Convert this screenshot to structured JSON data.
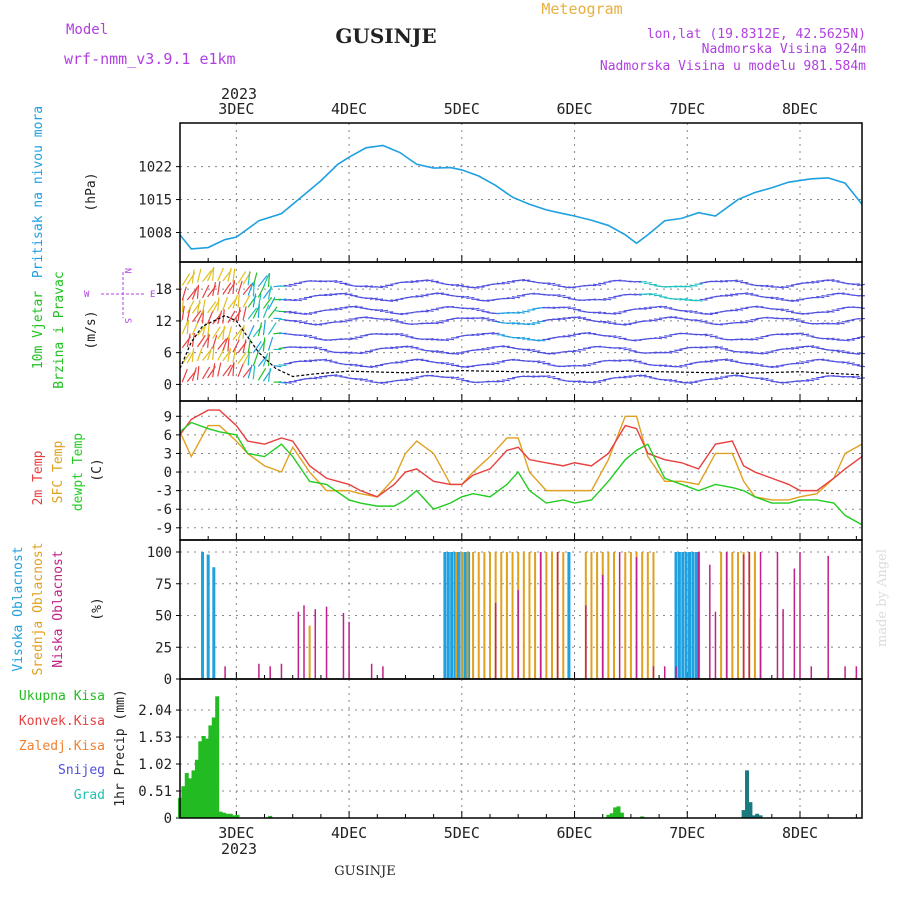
{
  "header": {
    "meteogram": "Meteogram",
    "model_label": "Model",
    "model_name": "wrf-nmm_v3.9.1 e1km",
    "station": "GUSINJE",
    "coords": "lon,lat (19.8312E, 42.5625N)",
    "altitude": "Nadmorska Visina 924m",
    "model_altitude": "Nadmorska Visina u modelu 981.584m",
    "footer_station": "GUSINJE",
    "credit": "made by Angel"
  },
  "colors": {
    "pressure": "#1fa0e0",
    "wind_label": "#22c022",
    "wind_dir": "#b040e0",
    "temp2m": "#e84040",
    "sfc": "#e0a020",
    "dew": "#22cc22",
    "high": "#1fa0e0",
    "mid": "#e0a020",
    "low": "#c0208a",
    "rain": "#22bb22",
    "conv": "#e84040",
    "frz": "#f08030",
    "snow": "#5050e0",
    "grad": "#20c0b0",
    "snowbar": "#1a7a80"
  },
  "time_axis": {
    "top_year": "2023",
    "bottom_year": "2023",
    "days": [
      "3DEC",
      "4DEC",
      "5DEC",
      "6DEC",
      "7DEC",
      "8DEC"
    ]
  },
  "chart_data": [
    {
      "type": "line",
      "id": "pressure",
      "ylabel": "Pritisak na nivou mora",
      "unit": "(hPa)",
      "yticks": [
        "1008",
        "1015",
        "1022"
      ],
      "ylim": [
        1003,
        1030
      ],
      "x": [
        2.5,
        2.6,
        2.75,
        2.9,
        3.0,
        3.2,
        3.4,
        3.6,
        3.75,
        3.9,
        4.0,
        4.15,
        4.3,
        4.45,
        4.6,
        4.75,
        4.9,
        5.0,
        5.15,
        5.3,
        5.45,
        5.6,
        5.75,
        5.9,
        6.0,
        6.15,
        6.3,
        6.45,
        6.55,
        6.65,
        6.8,
        6.95,
        7.1,
        7.25,
        7.45,
        7.6,
        7.75,
        7.9,
        8.1,
        8.25,
        8.4,
        8.55
      ],
      "y": [
        1007.5,
        1004.5,
        1004.8,
        1006.5,
        1007,
        1010.5,
        1012,
        1016,
        1019,
        1022.5,
        1024,
        1026,
        1026.5,
        1025,
        1022.5,
        1021.7,
        1021.8,
        1021.3,
        1020,
        1018,
        1015.5,
        1014,
        1012.8,
        1012,
        1011.5,
        1010.6,
        1009.5,
        1007.5,
        1005.7,
        1007.5,
        1010.5,
        1011,
        1012.2,
        1011.5,
        1015,
        1016.5,
        1017.5,
        1018.7,
        1019.4,
        1019.6,
        1018.5,
        1014
      ]
    },
    {
      "type": "line",
      "id": "wind",
      "ylabel": "10m Vjetar",
      "ylabel2": "Brzina i Pravac",
      "unit": "(m/s)",
      "compass": {
        "n": "N",
        "w": "W",
        "e": "E",
        "s": "S"
      },
      "yticks": [
        "0",
        "6",
        "12",
        "18"
      ],
      "ylim": [
        -2,
        22
      ],
      "series": [
        {
          "x": [
            2.5,
            2.6,
            2.7,
            2.8,
            2.9,
            3.0,
            3.1,
            3.2,
            3.35,
            3.5,
            3.7,
            4.0,
            4.5,
            5.0,
            5.5,
            6.0,
            6.5,
            7.0,
            7.5,
            8.0,
            8.55
          ],
          "y": [
            3,
            8,
            11,
            12,
            13,
            12,
            9,
            6,
            3,
            1.5,
            2,
            2.5,
            2.2,
            2.6,
            2.4,
            2.2,
            2.5,
            2.3,
            2.1,
            2.4,
            1.8
          ]
        }
      ]
    },
    {
      "type": "line",
      "id": "temperature",
      "ylabel": "2m Temp",
      "ylabel2": "SFC Temp",
      "ylabel3": "dewpt Temp",
      "unit": "(C)",
      "yticks": [
        "-9",
        "-6",
        "-3",
        "0",
        "3",
        "6",
        "9"
      ],
      "ylim": [
        -10,
        10.5
      ],
      "x": [
        2.5,
        2.6,
        2.75,
        2.85,
        3.0,
        3.1,
        3.25,
        3.4,
        3.5,
        3.65,
        3.8,
        4.0,
        4.1,
        4.25,
        4.4,
        4.5,
        4.6,
        4.75,
        4.9,
        5.0,
        5.1,
        5.25,
        5.4,
        5.5,
        5.6,
        5.75,
        5.9,
        6.0,
        6.15,
        6.3,
        6.45,
        6.55,
        6.65,
        6.8,
        6.95,
        7.1,
        7.25,
        7.4,
        7.5,
        7.6,
        7.75,
        7.9,
        8.0,
        8.15,
        8.3,
        8.4,
        8.55
      ],
      "series": [
        {
          "name": "2m Temp",
          "y": [
            6,
            8.5,
            10,
            10,
            7.5,
            5,
            4.5,
            5.5,
            5,
            1,
            -1,
            -2,
            -3,
            -4,
            -2,
            0,
            0.5,
            -1.5,
            -2,
            -2,
            -0.5,
            0.5,
            3.5,
            4,
            2,
            1.5,
            1,
            1.5,
            1,
            3,
            7.5,
            7,
            3,
            2,
            1.5,
            0.5,
            4.5,
            5,
            1,
            0,
            -1,
            -2,
            -3,
            -3,
            -1,
            0.5,
            2.5
          ]
        },
        {
          "name": "SFC Temp",
          "y": [
            6.5,
            2.5,
            7.5,
            7.5,
            5,
            3,
            1,
            0,
            4,
            0,
            -3,
            -3,
            -3.5,
            -4,
            -1,
            3,
            5,
            3,
            -2,
            -2,
            0,
            2.5,
            5.5,
            5.5,
            0,
            -3,
            -3,
            -3,
            -3,
            2,
            9,
            9,
            2.5,
            -1.5,
            -1.5,
            -2,
            3,
            3,
            -1.5,
            -4,
            -4.5,
            -4.5,
            -4,
            -3.5,
            -1,
            3,
            4.5
          ]
        },
        {
          "name": "dewpt Temp",
          "y": [
            6.5,
            8,
            7,
            6.5,
            6,
            3,
            2.5,
            4.5,
            2.5,
            -1.5,
            -2,
            -4.5,
            -5,
            -5.5,
            -5.5,
            -4.5,
            -3,
            -6,
            -5,
            -4,
            -3.5,
            -4,
            -2,
            0,
            -3,
            -5,
            -4.5,
            -5,
            -4.5,
            -1.5,
            2,
            3.5,
            4.5,
            -1,
            -2,
            -3,
            -2,
            -2.5,
            -3,
            -4,
            -5,
            -5,
            -4.5,
            -4.5,
            -5,
            -7,
            -8.5
          ]
        }
      ]
    },
    {
      "type": "bar",
      "id": "clouds",
      "ylabel": "Visoka Oblacnost",
      "ylabel2": "Srednja Oblacnost",
      "ylabel3": "Niska Oblacnost",
      "unit": "(%)",
      "yticks": [
        "0",
        "25",
        "50",
        "75",
        "100"
      ],
      "ylim": [
        0,
        100
      ],
      "series": [
        {
          "name": "Visoka Oblacnost",
          "x": [
            2.7,
            2.75,
            2.8,
            4.85,
            4.88,
            4.91,
            4.94,
            4.97,
            5.0,
            5.03,
            5.06,
            5.95,
            6.9,
            6.93,
            6.96,
            6.99,
            7.02,
            7.05,
            7.08,
            7.1
          ],
          "values": [
            100,
            98,
            88,
            100,
            100,
            100,
            100,
            100,
            100,
            100,
            100,
            100,
            100,
            100,
            100,
            100,
            100,
            100,
            100,
            100
          ]
        },
        {
          "name": "Srednja Oblacnost",
          "x": [
            3.65,
            4.95,
            5.0,
            5.05,
            5.1,
            5.15,
            5.2,
            5.25,
            5.3,
            5.35,
            5.4,
            5.45,
            5.5,
            5.55,
            5.6,
            5.65,
            5.7,
            5.75,
            5.8,
            5.85,
            5.9,
            6.1,
            6.15,
            6.2,
            6.25,
            6.3,
            6.35,
            6.45,
            6.5,
            6.55,
            6.6,
            6.65,
            6.7,
            7.3,
            7.35,
            7.4,
            7.45,
            7.5,
            7.55,
            7.6,
            7.65
          ],
          "values": [
            42,
            100,
            100,
            100,
            100,
            100,
            100,
            100,
            100,
            100,
            100,
            100,
            100,
            100,
            100,
            100,
            100,
            100,
            100,
            100,
            100,
            100,
            100,
            100,
            100,
            100,
            100,
            100,
            100,
            100,
            100,
            100,
            100,
            100,
            100,
            100,
            100,
            100,
            100,
            100,
            48
          ]
        },
        {
          "name": "Niska Oblacnost",
          "x": [
            2.9,
            3.2,
            3.3,
            3.4,
            3.55,
            3.6,
            3.7,
            3.8,
            3.95,
            4.0,
            4.2,
            4.3,
            5.3,
            5.5,
            5.7,
            5.85,
            6.1,
            6.25,
            6.4,
            6.55,
            6.7,
            6.8,
            6.9,
            7.1,
            7.2,
            7.25,
            7.35,
            7.5,
            7.55,
            7.65,
            7.8,
            7.85,
            7.95,
            8.0,
            8.1,
            8.25,
            8.4,
            8.5
          ],
          "values": [
            10,
            12,
            10,
            12,
            53,
            58,
            55,
            57,
            52,
            45,
            12,
            10,
            60,
            70,
            100,
            100,
            58,
            82,
            100,
            96,
            10,
            10,
            10,
            100,
            90,
            53,
            100,
            98,
            100,
            100,
            100,
            55,
            87,
            100,
            10,
            97,
            10,
            10
          ]
        }
      ]
    },
    {
      "type": "bar",
      "id": "precip",
      "ylabel": "1hr Precip (mm)",
      "legend": [
        "Ukupna Kisa",
        "Konvek.Kisa",
        "Zaledj.Kisa",
        "Snijeg",
        "Grad"
      ],
      "yticks": [
        "0",
        "0.51",
        "1.02",
        "1.53",
        "2.04"
      ],
      "ylim": [
        0,
        2.4
      ],
      "series": [
        {
          "name": "Ukupna Kisa",
          "x": [
            2.5,
            2.53,
            2.56,
            2.59,
            2.62,
            2.65,
            2.68,
            2.71,
            2.74,
            2.77,
            2.8,
            2.83,
            2.86,
            2.89,
            2.92,
            2.95,
            2.98,
            3.01,
            3.3,
            6.3,
            6.33,
            6.36,
            6.39,
            6.42,
            6.6
          ],
          "values": [
            0.38,
            0.6,
            0.85,
            0.75,
            0.9,
            1.1,
            1.45,
            1.55,
            1.5,
            1.75,
            1.9,
            2.3,
            0.12,
            0.1,
            0.08,
            0.08,
            0.05,
            0.06,
            0.04,
            0.06,
            0.09,
            0.2,
            0.22,
            0.1,
            0.03
          ]
        },
        {
          "name": "Snijeg",
          "x": [
            7.5,
            7.53,
            7.56,
            7.59,
            7.62,
            7.65
          ],
          "values": [
            0.15,
            0.9,
            0.3,
            0.05,
            0.08,
            0.05
          ]
        }
      ]
    }
  ]
}
